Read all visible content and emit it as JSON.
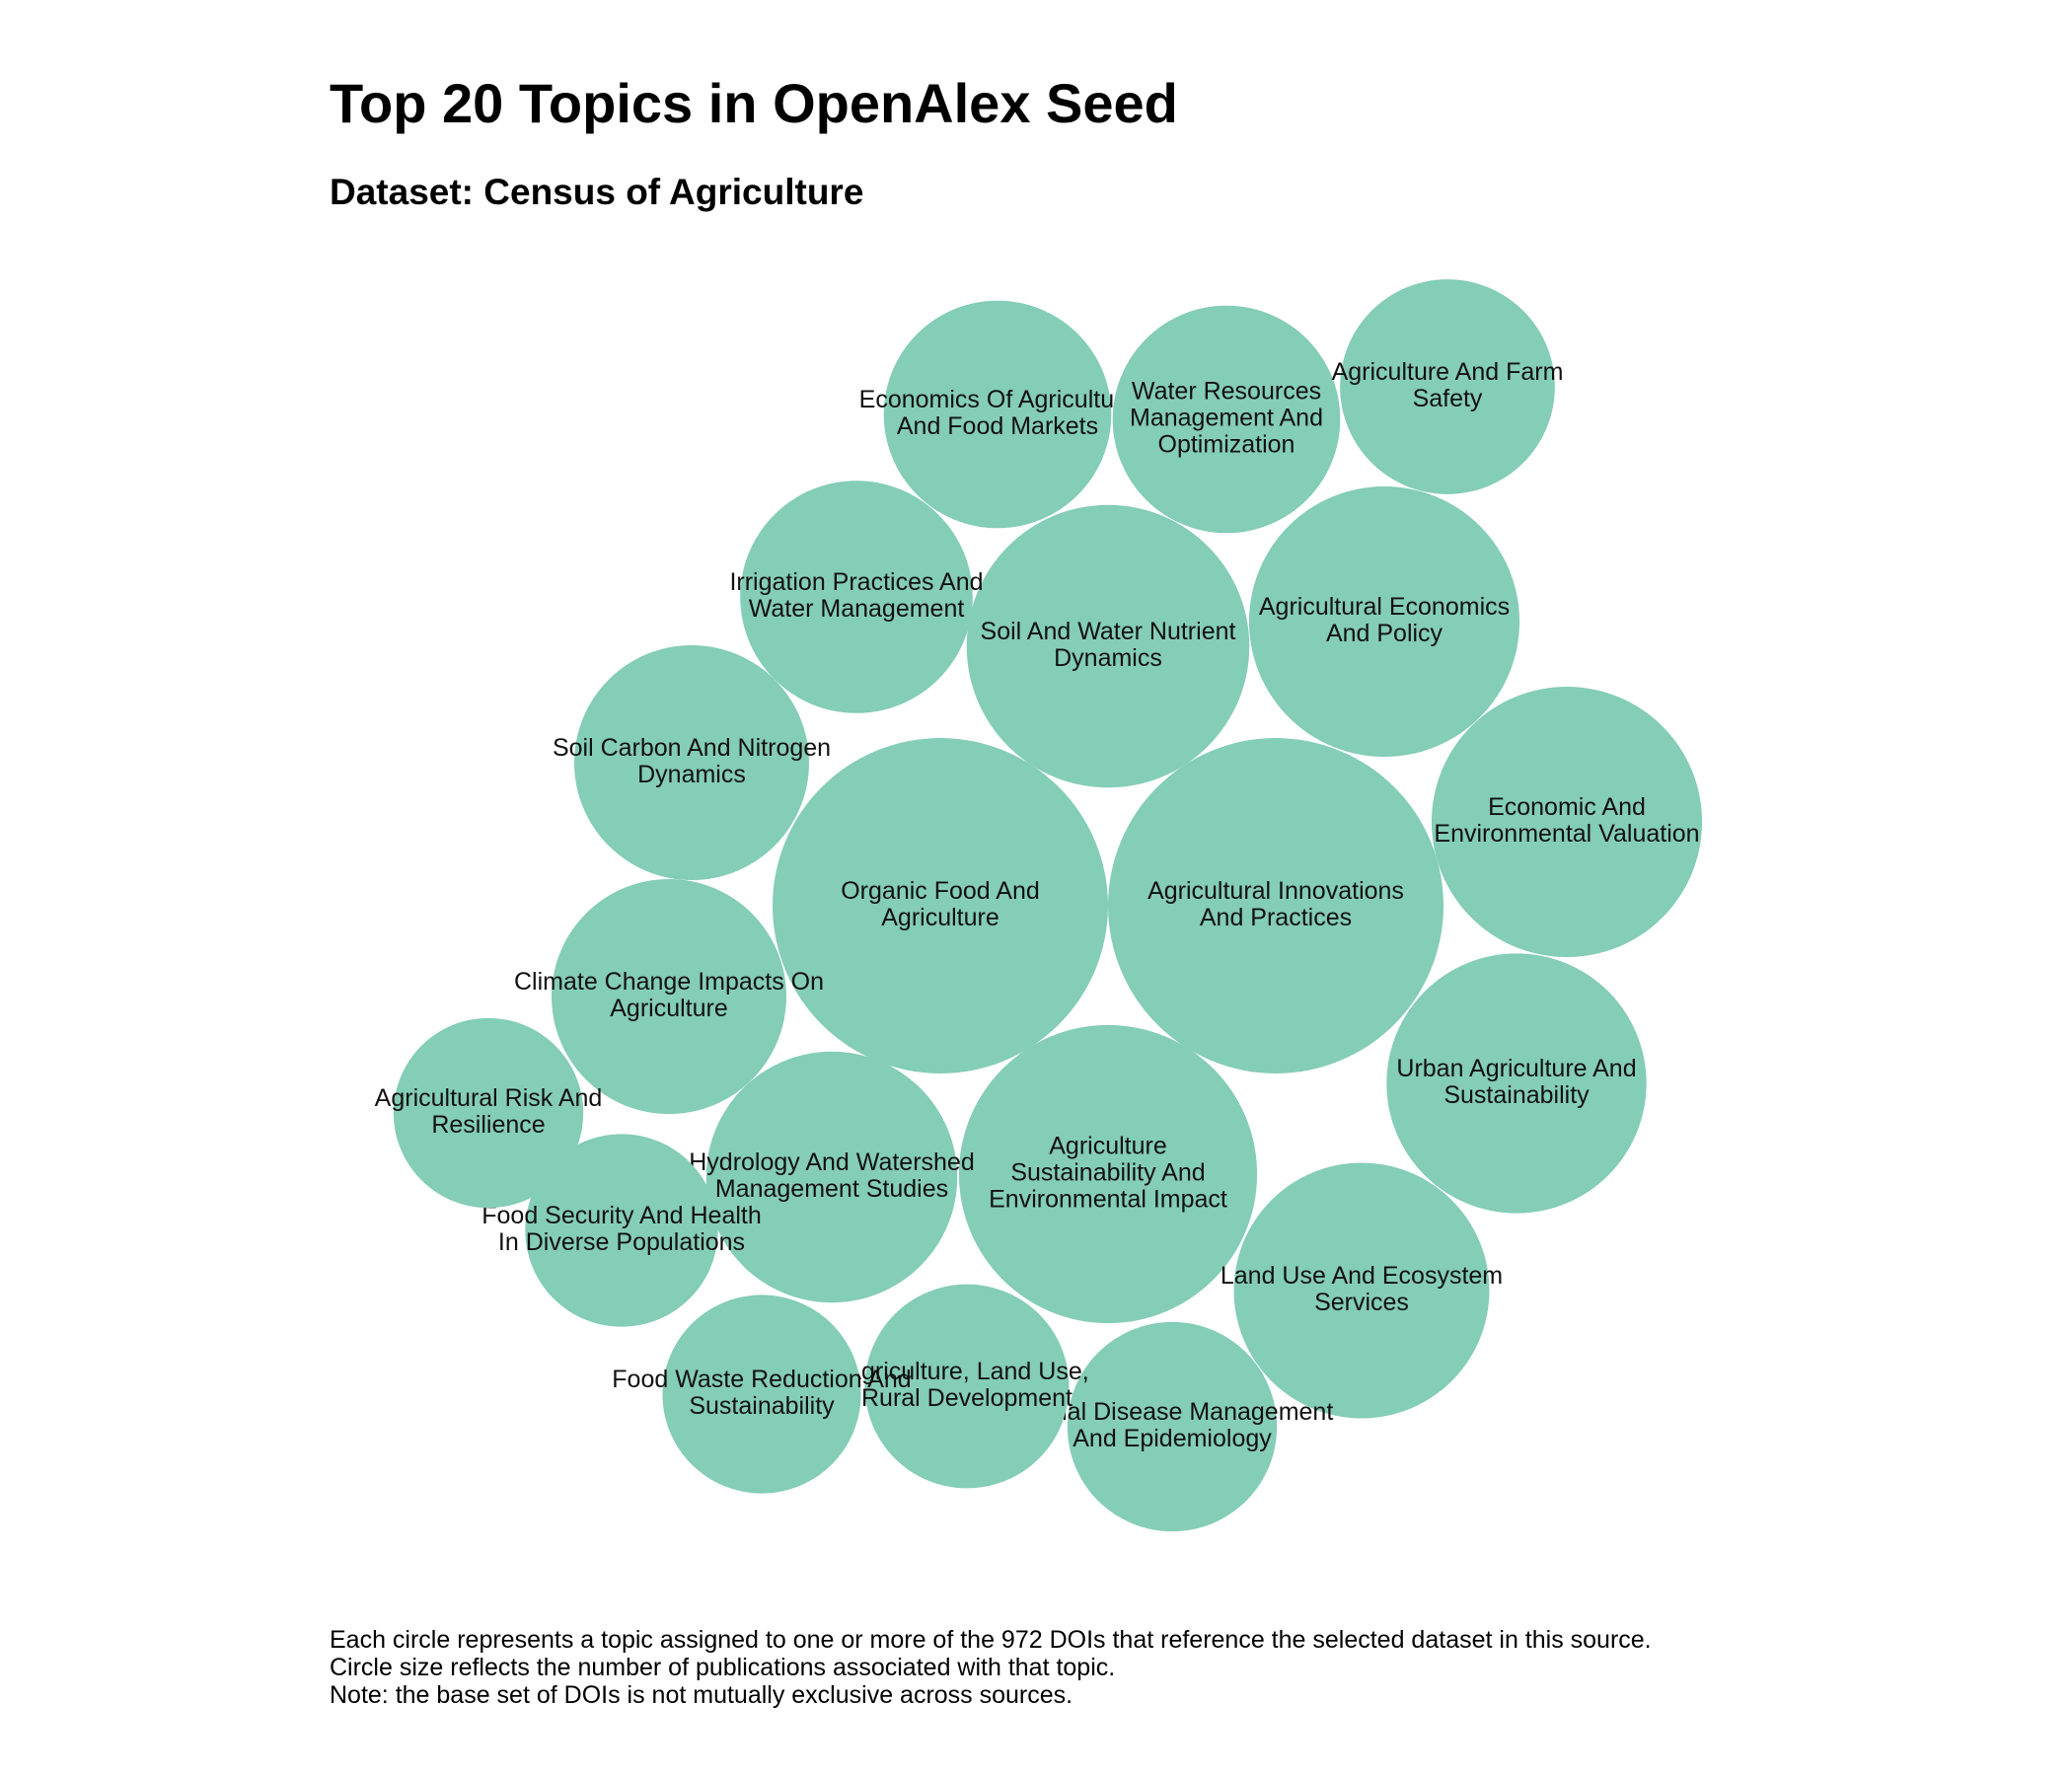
{
  "title": "Top 20 Topics in OpenAlex Seed",
  "subtitle": "Dataset: Census of Agriculture",
  "caption": [
    "Each circle represents a topic assigned to one or more of the 972 DOIs that reference the selected dataset in this source.",
    "Circle size reflects the number of publications associated with that topic.",
    "Note: the base set of DOIs is not mutually exclusive across sources."
  ],
  "colors": {
    "bubble_fill": "#84cdb6",
    "text": "#111111"
  },
  "chart_data": {
    "type": "bubble",
    "title": "Top 20 Topics in OpenAlex Seed",
    "subtitle": "Dataset: Census of Agriculture",
    "size_encoding": "number of publications associated with topic",
    "bubbles": [
      {
        "label": "Agricultural Innovations And Practices",
        "lines": [
          "Agricultural Innovations",
          "And Practices"
        ],
        "relative_size": 1.0
      },
      {
        "label": "Organic Food And Agriculture",
        "lines": [
          "Organic Food And",
          "Agriculture"
        ],
        "relative_size": 1.0
      },
      {
        "label": "Agriculture Sustainability And Environmental Impact",
        "lines": [
          "Agriculture",
          "Sustainability And",
          "Environmental Impact"
        ],
        "relative_size": 0.79
      },
      {
        "label": "Soil And Water Nutrient Dynamics",
        "lines": [
          "Soil And Water Nutrient",
          "Dynamics"
        ],
        "relative_size": 0.71
      },
      {
        "label": "Agricultural Economics And Policy",
        "lines": [
          "Agricultural Economics",
          "And Policy"
        ],
        "relative_size": 0.65
      },
      {
        "label": "Economic And Environmental Valuation",
        "lines": [
          "Economic And",
          "Environmental Valuation"
        ],
        "relative_size": 0.65
      },
      {
        "label": "Urban Agriculture And Sustainability",
        "lines": [
          "Urban Agriculture And",
          "Sustainability"
        ],
        "relative_size": 0.6
      },
      {
        "label": "Land Use And Ecosystem Services",
        "lines": [
          "Land Use And Ecosystem",
          "Services"
        ],
        "relative_size": 0.58
      },
      {
        "label": "Hydrology And Watershed Management Studies",
        "lines": [
          "Hydrology And Watershed",
          "Management Studies"
        ],
        "relative_size": 0.56
      },
      {
        "label": "Irrigation Practices And Water Management",
        "lines": [
          "Irrigation Practices And",
          "Water Management"
        ],
        "relative_size": 0.48
      },
      {
        "label": "Economics Of Agriculture And Food Markets",
        "lines": [
          "Economics Of Agriculture",
          "And Food Markets"
        ],
        "relative_size": 0.46
      },
      {
        "label": "Water Resources Management And Optimization",
        "lines": [
          "Water Resources",
          "Management And",
          "Optimization"
        ],
        "relative_size": 0.46
      },
      {
        "label": "Soil Carbon And Nitrogen Dynamics",
        "lines": [
          "Soil Carbon And Nitrogen",
          "Dynamics"
        ],
        "relative_size": 0.49
      },
      {
        "label": "Climate Change Impacts On Agriculture",
        "lines": [
          "Climate Change Impacts On",
          "Agriculture"
        ],
        "relative_size": 0.49
      },
      {
        "label": "Agriculture And Farm Safety",
        "lines": [
          "Agriculture And Farm",
          "Safety"
        ],
        "relative_size": 0.41
      },
      {
        "label": "Animal Disease Management And Epidemiology",
        "lines": [
          "Animal Disease Management",
          "And Epidemiology"
        ],
        "relative_size": 0.39
      },
      {
        "label": "Agriculture, Land Use, Rural Development",
        "lines": [
          "Agriculture, Land Use,",
          "Rural Development"
        ],
        "relative_size": 0.37
      },
      {
        "label": "Food Waste Reduction And Sustainability",
        "lines": [
          "Food Waste Reduction And",
          "Sustainability"
        ],
        "relative_size": 0.35
      },
      {
        "label": "Food Security And Health In Diverse Populations",
        "lines": [
          "Food Security And Health",
          "In Diverse Populations"
        ],
        "relative_size": 0.33
      },
      {
        "label": "Agricultural Risk And Resilience",
        "lines": [
          "Agricultural Risk And",
          "Resilience"
        ],
        "relative_size": 0.32
      }
    ]
  }
}
